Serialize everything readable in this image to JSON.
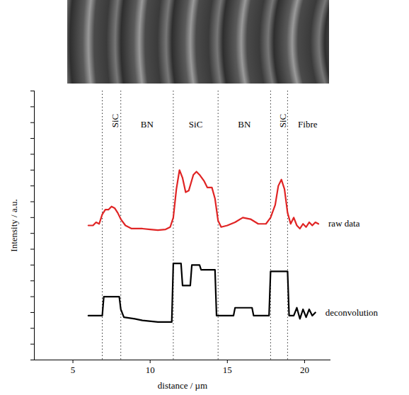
{
  "chart_data": {
    "type": "line",
    "xlabel": "distance / µm",
    "ylabel": "Intensity / a.u.",
    "xlim": [
      2.5,
      21.7
    ],
    "xticks": [
      5,
      10,
      15,
      20
    ],
    "ylim": [
      0,
      17
    ],
    "yticks": [
      0,
      1,
      2,
      3,
      4,
      5,
      6,
      7,
      8,
      9,
      10,
      11,
      12,
      13,
      14,
      15,
      16,
      17
    ],
    "tick_labels": "x",
    "dividers": [
      6.9,
      8.1,
      11.5,
      14.4,
      17.8,
      18.9
    ],
    "regions": [
      {
        "label": "SiC",
        "x": 7.5
      },
      {
        "label": "BN",
        "x": 9.8
      },
      {
        "label": "SiC",
        "x": 12.95
      },
      {
        "label": "BN",
        "x": 16.1
      },
      {
        "label": "SiC",
        "x": 18.35
      },
      {
        "label": "Fibre",
        "x": 20.2
      }
    ],
    "series": [
      {
        "name": "raw data",
        "color": "#e02424",
        "line_style": "solid",
        "x": [
          6.0,
          6.3,
          6.5,
          6.7,
          6.9,
          7.1,
          7.3,
          7.5,
          7.7,
          7.9,
          8.1,
          8.4,
          8.8,
          9.5,
          10.0,
          10.5,
          11.0,
          11.3,
          11.5,
          11.7,
          11.9,
          12.1,
          12.3,
          12.5,
          12.8,
          13.0,
          13.2,
          13.5,
          13.7,
          14.0,
          14.2,
          14.4,
          14.6,
          15.0,
          15.5,
          16.0,
          16.5,
          17.0,
          17.5,
          17.8,
          18.1,
          18.3,
          18.5,
          18.7,
          18.9,
          19.1,
          19.3,
          19.5,
          19.7,
          19.9,
          20.1,
          20.3,
          20.5,
          20.7,
          20.9
        ],
        "values": [
          8.5,
          8.5,
          8.7,
          8.6,
          9.2,
          9.5,
          9.5,
          9.7,
          9.6,
          9.3,
          8.9,
          8.5,
          8.3,
          8.3,
          8.25,
          8.2,
          8.25,
          8.4,
          9.0,
          10.8,
          12.0,
          11.5,
          10.6,
          10.7,
          11.7,
          11.9,
          11.7,
          11.3,
          10.9,
          10.9,
          10.2,
          8.8,
          8.4,
          8.5,
          8.7,
          9.0,
          8.9,
          8.6,
          8.6,
          9.0,
          9.8,
          11.0,
          11.4,
          10.8,
          9.3,
          8.6,
          9.0,
          8.5,
          8.3,
          8.6,
          8.4,
          8.7,
          8.5,
          8.7,
          8.6
        ]
      },
      {
        "name": "deconvolution",
        "color": "#000000",
        "line_style": "solid",
        "x": [
          6.0,
          6.9,
          7.0,
          8.0,
          8.1,
          8.3,
          9.0,
          9.5,
          10.5,
          11.4,
          11.5,
          12.0,
          12.1,
          12.6,
          12.7,
          13.2,
          13.3,
          14.2,
          14.3,
          15.4,
          15.5,
          16.6,
          16.7,
          17.7,
          17.8,
          18.9,
          19.0,
          19.3,
          19.5,
          19.7,
          19.9,
          20.1,
          20.3,
          20.5,
          20.7
        ],
        "values": [
          2.8,
          2.8,
          4.0,
          4.0,
          3.2,
          2.7,
          2.6,
          2.5,
          2.4,
          2.4,
          6.1,
          6.1,
          4.7,
          4.7,
          6.0,
          6.0,
          5.7,
          5.7,
          2.8,
          2.8,
          3.3,
          3.3,
          2.8,
          2.8,
          5.6,
          5.6,
          2.8,
          2.8,
          3.3,
          2.6,
          3.2,
          2.7,
          3.2,
          2.8,
          3.0
        ]
      }
    ]
  }
}
